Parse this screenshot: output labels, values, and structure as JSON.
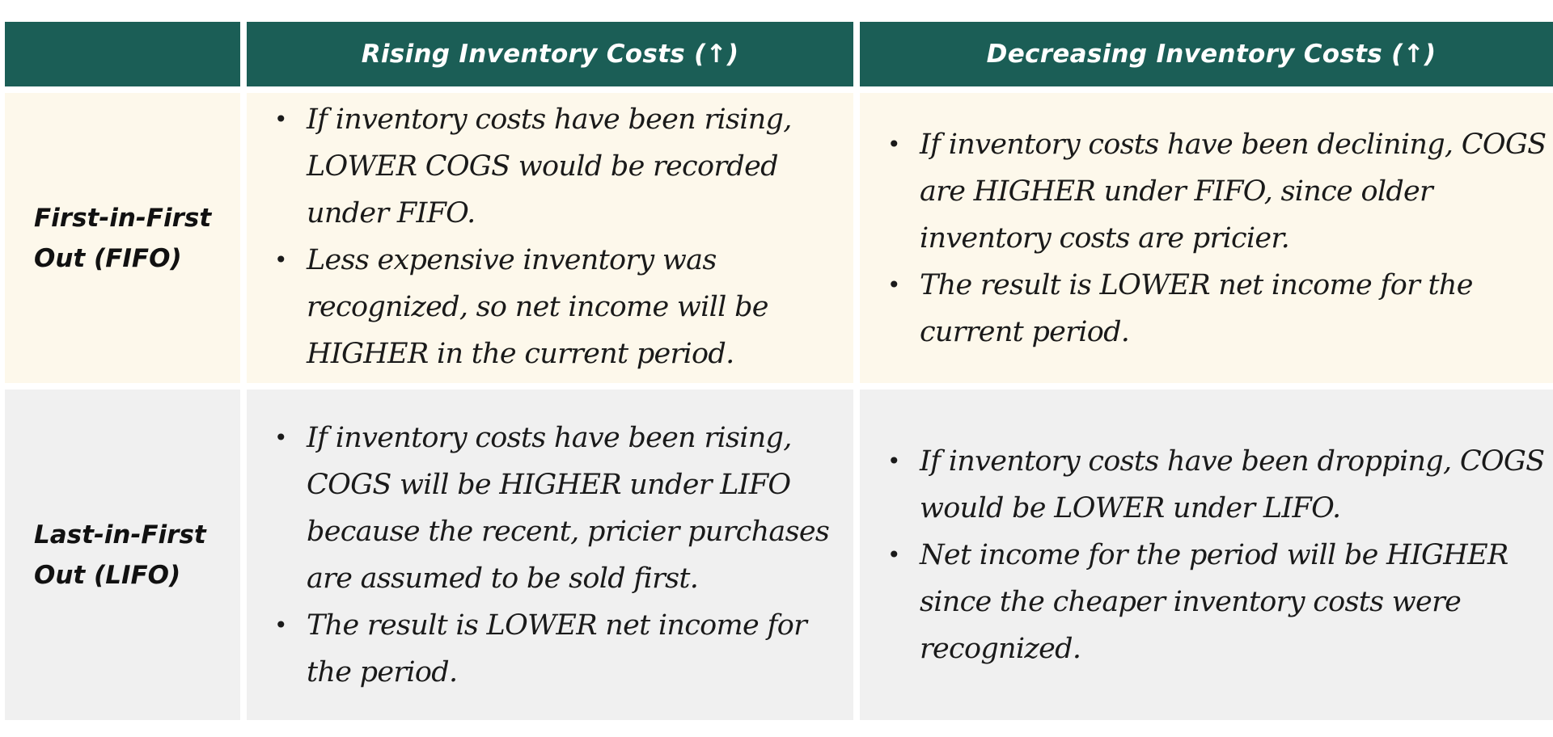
{
  "header": {
    "corner": "",
    "col_rising": "Rising Inventory Costs (↑)",
    "col_decreasing": "Decreasing Inventory Costs (↑)"
  },
  "rows": [
    {
      "label_line1": "First-in-First",
      "label_line2": "Out (FIFO)",
      "rising": [
        "If inventory costs have been rising, LOWER COGS would be recorded under FIFO.",
        "Less expensive inventory was recognized, so net income will be HIGHER in the current period."
      ],
      "decreasing": [
        "If inventory costs have been declining, COGS are HIGHER under FIFO, since older inventory costs are pricier.",
        "The result is LOWER net income for the current period."
      ]
    },
    {
      "label_line1": "Last-in-First",
      "label_line2": "Out (LIFO)",
      "rising": [
        "If inventory costs have been rising, COGS will be HIGHER under LIFO because the recent, pricier purchases are assumed to be sold first.",
        "The result is LOWER net income for the period."
      ],
      "decreasing": [
        "If inventory costs have been dropping, COGS would be LOWER under LIFO.",
        "Net income for the period will be HIGHER since the cheaper inventory costs were recognized."
      ]
    }
  ],
  "bullet": "•",
  "colors": {
    "header_bg": "#1b5e56",
    "fifo_row_bg": "#fdf8eb",
    "lifo_row_bg": "#f0f0f0"
  }
}
